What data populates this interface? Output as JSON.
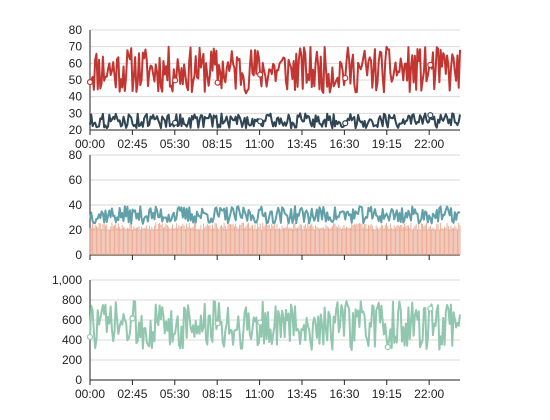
{
  "chart_data": [
    {
      "type": "line",
      "x_ticks": [
        "00:00",
        "02:45",
        "05:30",
        "08:15",
        "11:00",
        "13:45",
        "16:30",
        "19:15",
        "22:00"
      ],
      "ylim": [
        20,
        80
      ],
      "y_ticks": [
        20,
        30,
        40,
        50,
        60,
        70,
        80
      ],
      "grid": true,
      "series": [
        {
          "color": "#c23531",
          "range": [
            42,
            70
          ],
          "markers_at": [
            "00:00",
            "05:30",
            "08:15",
            "11:00",
            "16:30",
            "22:00"
          ]
        },
        {
          "color": "#2f4554",
          "range": [
            21,
            30
          ],
          "markers_at": [
            "05:30",
            "11:00",
            "16:30",
            "22:00"
          ]
        }
      ]
    },
    {
      "type": "bar+line",
      "x_ticks": [],
      "ylim": [
        0,
        80
      ],
      "y_ticks": [
        0,
        20,
        40,
        60,
        80
      ],
      "grid": true,
      "series": [
        {
          "type": "line",
          "color": "#61a0a8",
          "range": [
            25,
            39
          ]
        },
        {
          "type": "bar",
          "color": "#e8967a",
          "range": [
            20,
            26
          ]
        }
      ]
    },
    {
      "type": "line",
      "x_ticks": [
        "00:00",
        "02:45",
        "05:30",
        "08:15",
        "11:00",
        "13:45",
        "16:30",
        "19:15",
        "22:00"
      ],
      "ylim": [
        0,
        1000
      ],
      "y_ticks": [
        "0",
        "200",
        "400",
        "600",
        "800",
        "1,000"
      ],
      "grid": true,
      "series": [
        {
          "color": "#91c7ae",
          "range": [
            300,
            790
          ],
          "markers_at": [
            "00:00",
            "02:45",
            "08:15",
            "11:00",
            "19:15",
            "22:00"
          ]
        }
      ]
    }
  ]
}
